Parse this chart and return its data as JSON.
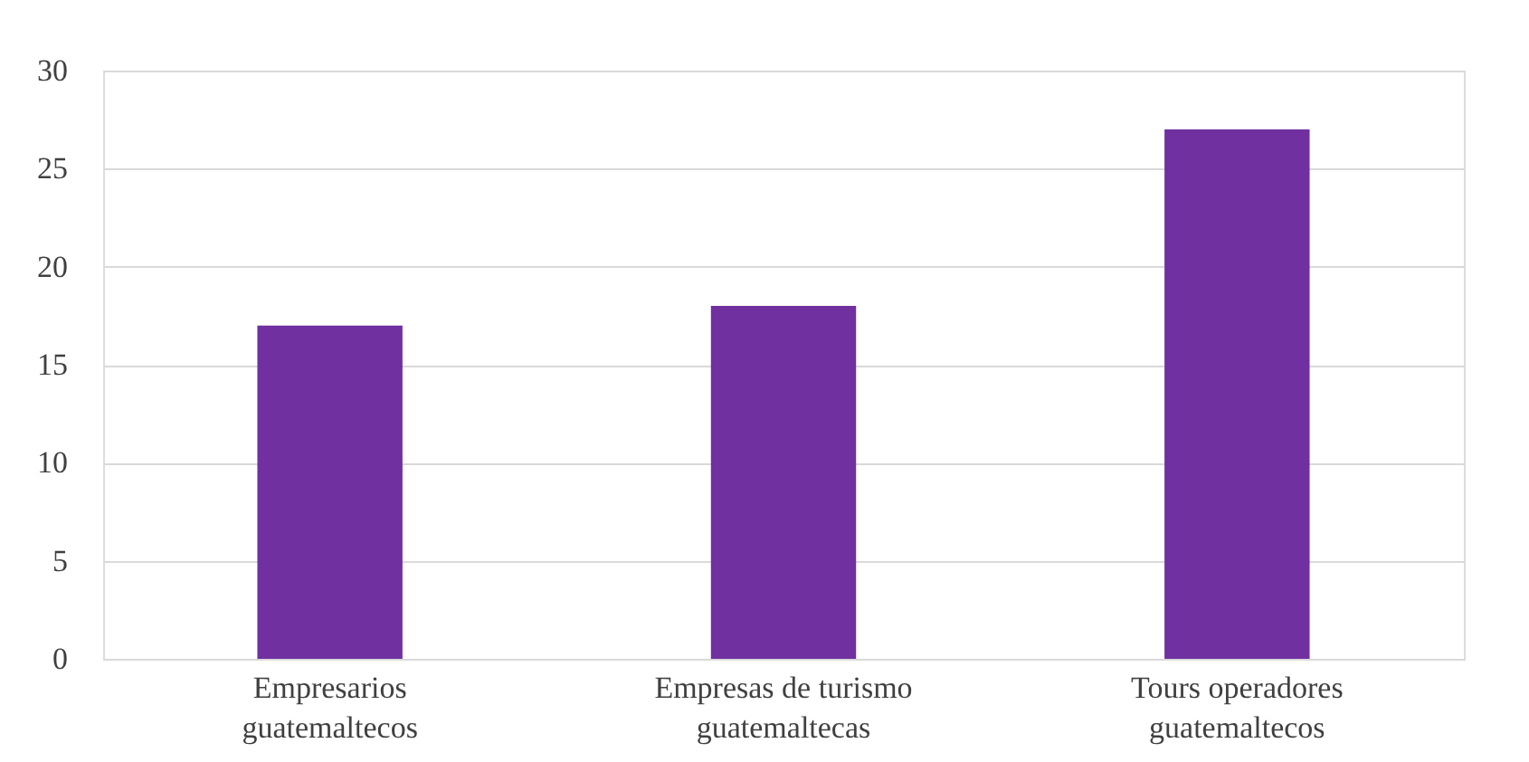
{
  "chart_data": {
    "type": "bar",
    "categories": [
      "Empresarios guatemaltecos",
      "Empresas de turismo guatemaltecas",
      "Tours operadores guatemaltecos"
    ],
    "values": [
      17,
      18,
      27
    ],
    "color": "#7030a0",
    "ylim": [
      0,
      30
    ],
    "yticks": [
      0,
      5,
      10,
      15,
      20,
      25,
      30
    ],
    "grid": "y"
  }
}
